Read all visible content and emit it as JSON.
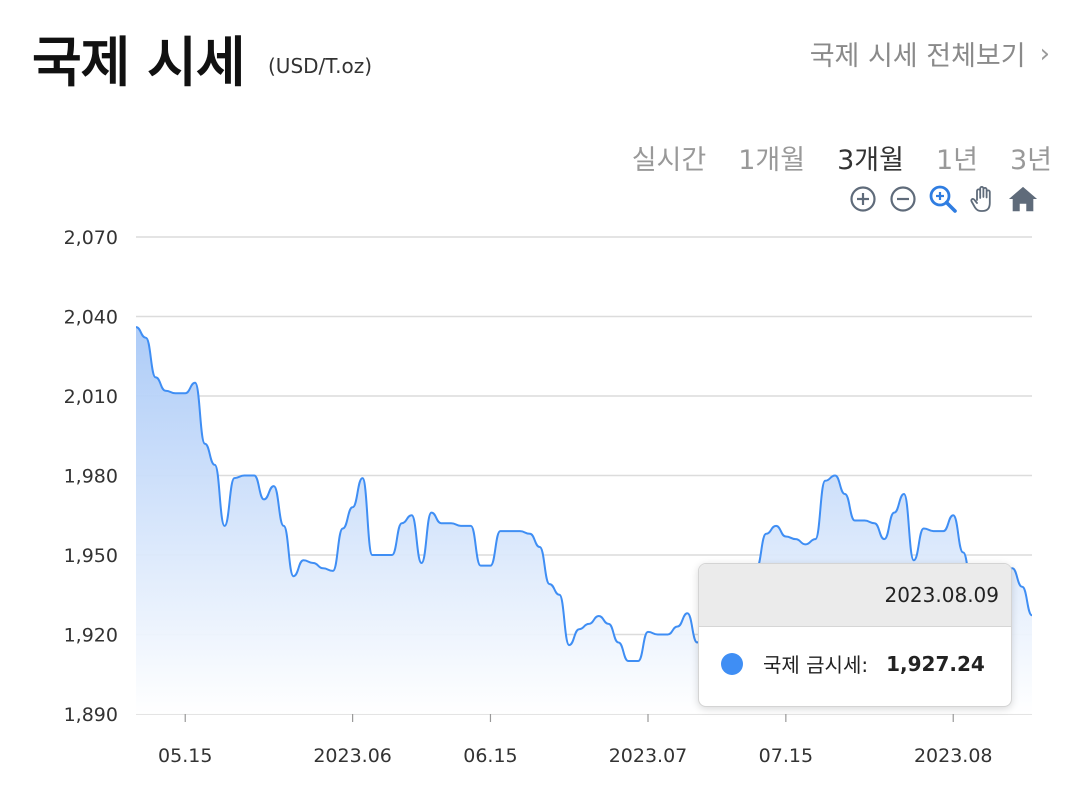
{
  "header": {
    "title": "국제 시세",
    "unit": "(USD/T.oz)",
    "view_all": "국제 시세 전체보기",
    "view_all_chevron": "›"
  },
  "tabs": [
    {
      "label": "실시간",
      "active": false
    },
    {
      "label": "1개월",
      "active": false
    },
    {
      "label": "3개월",
      "active": true
    },
    {
      "label": "1년",
      "active": false
    },
    {
      "label": "3년",
      "active": false
    }
  ],
  "tools": [
    "zoom-in-icon",
    "zoom-out-icon",
    "zoom-select-icon",
    "pan-hand-icon",
    "home-reset-icon"
  ],
  "colors": {
    "line": "#3f8ef4",
    "fill_top": "#a9c9f7",
    "fill_bottom": "#ffffff",
    "grid": "#dcdcdc",
    "tick": "#333333",
    "active_tool": "#2f7de1",
    "tool": "#5f6b7a"
  },
  "tooltip": {
    "date": "2023.08.09",
    "series_label": "국제 금시세:",
    "value": "1,927.24"
  },
  "chart_data": {
    "type": "area",
    "title": "",
    "xlabel": "",
    "ylabel": "",
    "ylim": [
      1890,
      2070
    ],
    "yticks": [
      1890,
      1920,
      1950,
      1980,
      2010,
      2040,
      2070
    ],
    "ytick_labels": [
      "1,890",
      "1,920",
      "1,950",
      "1,980",
      "2,010",
      "2,040",
      "2,070"
    ],
    "xlim": [
      "2023-05-10",
      "2023-08-09"
    ],
    "xticks": [
      {
        "date": "2023-05-15",
        "label": "05.15"
      },
      {
        "date": "2023-06-01",
        "label": "2023.06"
      },
      {
        "date": "2023-06-15",
        "label": "06.15"
      },
      {
        "date": "2023-07-01",
        "label": "2023.07"
      },
      {
        "date": "2023-07-15",
        "label": "07.15"
      },
      {
        "date": "2023-08-01",
        "label": "2023.08"
      }
    ],
    "series": [
      {
        "name": "국제 금시세",
        "points": [
          [
            "2023-05-10",
            2036
          ],
          [
            "2023-05-11",
            2032
          ],
          [
            "2023-05-12",
            2017
          ],
          [
            "2023-05-13",
            2012
          ],
          [
            "2023-05-14",
            2011
          ],
          [
            "2023-05-15",
            2011
          ],
          [
            "2023-05-16",
            2015
          ],
          [
            "2023-05-17",
            1992
          ],
          [
            "2023-05-18",
            1984
          ],
          [
            "2023-05-19",
            1961
          ],
          [
            "2023-05-20",
            1979
          ],
          [
            "2023-05-21",
            1980
          ],
          [
            "2023-05-22",
            1980
          ],
          [
            "2023-05-23",
            1971
          ],
          [
            "2023-05-24",
            1976
          ],
          [
            "2023-05-25",
            1961
          ],
          [
            "2023-05-26",
            1942
          ],
          [
            "2023-05-27",
            1948
          ],
          [
            "2023-05-28",
            1947
          ],
          [
            "2023-05-29",
            1945
          ],
          [
            "2023-05-30",
            1944
          ],
          [
            "2023-05-31",
            1960
          ],
          [
            "2023-06-01",
            1968
          ],
          [
            "2023-06-02",
            1979
          ],
          [
            "2023-06-03",
            1950
          ],
          [
            "2023-06-04",
            1950
          ],
          [
            "2023-06-05",
            1950
          ],
          [
            "2023-06-06",
            1962
          ],
          [
            "2023-06-07",
            1965
          ],
          [
            "2023-06-08",
            1947
          ],
          [
            "2023-06-09",
            1966
          ],
          [
            "2023-06-10",
            1962
          ],
          [
            "2023-06-11",
            1962
          ],
          [
            "2023-06-12",
            1961
          ],
          [
            "2023-06-13",
            1961
          ],
          [
            "2023-06-14",
            1946
          ],
          [
            "2023-06-15",
            1946
          ],
          [
            "2023-06-16",
            1959
          ],
          [
            "2023-06-17",
            1959
          ],
          [
            "2023-06-18",
            1959
          ],
          [
            "2023-06-19",
            1958
          ],
          [
            "2023-06-20",
            1953
          ],
          [
            "2023-06-21",
            1939
          ],
          [
            "2023-06-22",
            1935
          ],
          [
            "2023-06-23",
            1916
          ],
          [
            "2023-06-24",
            1922
          ],
          [
            "2023-06-25",
            1924
          ],
          [
            "2023-06-26",
            1927
          ],
          [
            "2023-06-27",
            1924
          ],
          [
            "2023-06-28",
            1917
          ],
          [
            "2023-06-29",
            1910
          ],
          [
            "2023-06-30",
            1910
          ],
          [
            "2023-07-01",
            1921
          ],
          [
            "2023-07-02",
            1920
          ],
          [
            "2023-07-03",
            1920
          ],
          [
            "2023-07-04",
            1923
          ],
          [
            "2023-07-05",
            1928
          ],
          [
            "2023-07-06",
            1917
          ],
          [
            "2023-07-07",
            1925
          ],
          [
            "2023-07-08",
            1925
          ],
          [
            "2023-07-09",
            1925
          ],
          [
            "2023-07-10",
            1926
          ],
          [
            "2023-07-11",
            1932
          ],
          [
            "2023-07-12",
            1945
          ],
          [
            "2023-07-13",
            1958
          ],
          [
            "2023-07-14",
            1961
          ],
          [
            "2023-07-15",
            1957
          ],
          [
            "2023-07-16",
            1956
          ],
          [
            "2023-07-17",
            1954
          ],
          [
            "2023-07-18",
            1956
          ],
          [
            "2023-07-19",
            1978
          ],
          [
            "2023-07-20",
            1980
          ],
          [
            "2023-07-21",
            1973
          ],
          [
            "2023-07-22",
            1963
          ],
          [
            "2023-07-23",
            1963
          ],
          [
            "2023-07-24",
            1962
          ],
          [
            "2023-07-25",
            1956
          ],
          [
            "2023-07-26",
            1966
          ],
          [
            "2023-07-27",
            1973
          ],
          [
            "2023-07-28",
            1948
          ],
          [
            "2023-07-29",
            1960
          ],
          [
            "2023-07-30",
            1959
          ],
          [
            "2023-07-31",
            1959
          ],
          [
            "2023-08-01",
            1965
          ],
          [
            "2023-08-02",
            1951
          ],
          [
            "2023-08-03",
            1936
          ],
          [
            "2023-08-04",
            1937
          ],
          [
            "2023-08-05",
            1938
          ],
          [
            "2023-08-06",
            1940
          ],
          [
            "2023-08-07",
            1945
          ],
          [
            "2023-08-08",
            1938
          ],
          [
            "2023-08-09",
            1927.24
          ]
        ]
      }
    ]
  }
}
